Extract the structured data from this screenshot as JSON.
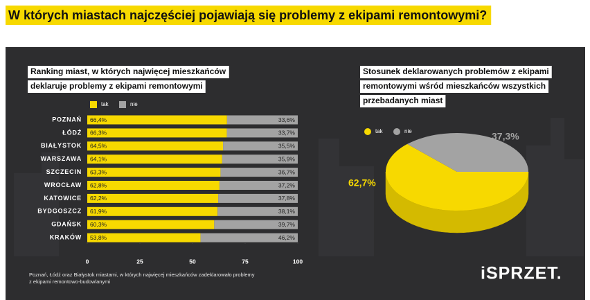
{
  "title": "W których miastach najczęściej pojawiają się problemy z ekipami remontowymi?",
  "footnote": [
    "Poznań, Łódź oraz Białystok miastami, w których najwięcej mieszkańców zadeklarowało problemy",
    "z ekipami remontowo-budowlanymi"
  ],
  "logo": "iSPRZET.",
  "chart_data": [
    {
      "type": "hbar-stacked",
      "title": [
        "Ranking miast, w których najwięcej mieszkańców",
        "deklaruje problemy z ekipami remontowymi"
      ],
      "categories": [
        "POZNAŃ",
        "ŁÓDŹ",
        "BIAŁYSTOK",
        "WARSZAWA",
        "SZCZECIN",
        "WROCŁAW",
        "KATOWICE",
        "BYDGOSZCZ",
        "GDAŃSK",
        "KRAKÓW"
      ],
      "series": [
        {
          "name": "tak",
          "color": "#f7d900",
          "values": [
            66.4,
            66.3,
            64.5,
            64.1,
            63.3,
            62.8,
            62.2,
            61.9,
            60.3,
            53.8
          ],
          "value_labels": [
            "66,4%",
            "66,3%",
            "64,5%",
            "64,1%",
            "63,3%",
            "62,8%",
            "62,2%",
            "61,9%",
            "60,3%",
            "53,8%"
          ]
        },
        {
          "name": "nie",
          "color": "#a3a3a3",
          "values": [
            33.6,
            33.7,
            35.5,
            35.9,
            36.7,
            37.2,
            37.8,
            38.1,
            39.7,
            46.2
          ],
          "value_labels": [
            "33,6%",
            "33,7%",
            "35,5%",
            "35,9%",
            "36,7%",
            "37,2%",
            "37,8%",
            "38,1%",
            "39,7%",
            "46,2%"
          ]
        }
      ],
      "xlim": [
        0,
        100
      ],
      "xticks": [
        0,
        25,
        50,
        75,
        100
      ]
    },
    {
      "type": "pie",
      "title": [
        "Stosunek deklarowanych problemów z ekipami",
        "remontowymi wśród mieszkańców wszystkich",
        "przebadanych miast"
      ],
      "categories": [
        "tak",
        "nie"
      ],
      "values": [
        62.7,
        37.3
      ],
      "value_labels": [
        "62,7%",
        "37,3%"
      ],
      "colors": [
        "#f7d900",
        "#a3a3a3"
      ]
    }
  ]
}
